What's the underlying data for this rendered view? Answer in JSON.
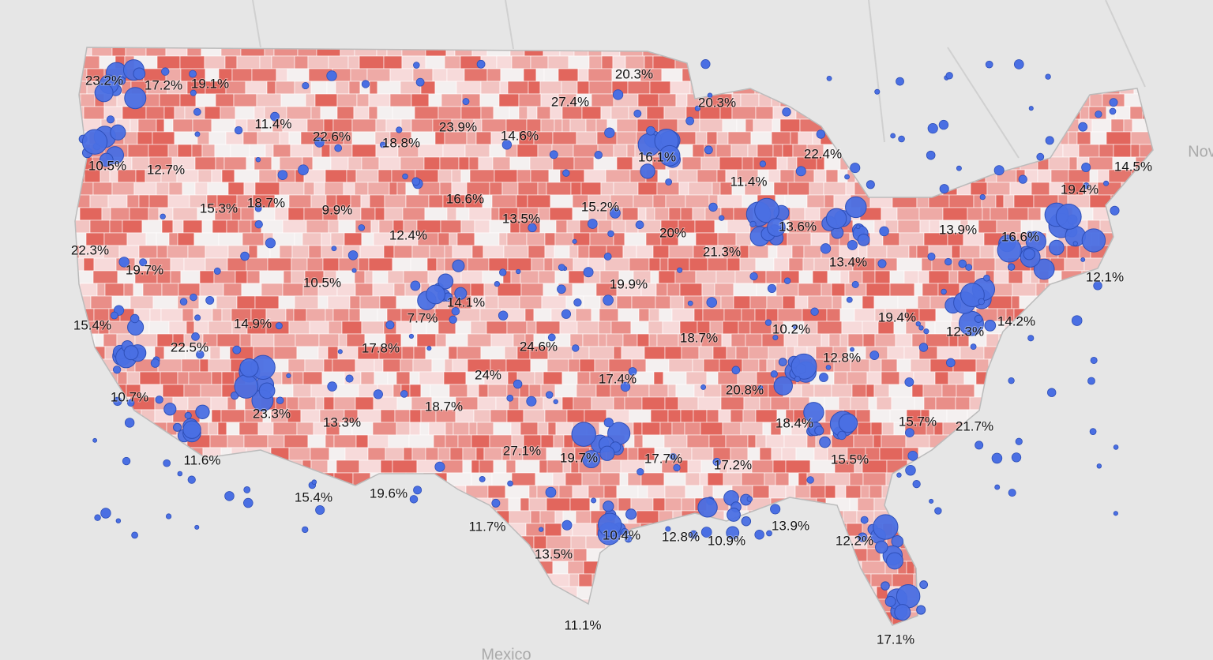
{
  "map": {
    "labels": [
      "23.2%",
      "17.2%",
      "19.1%",
      "20.3%",
      "27.4%",
      "20.3%",
      "11.4%",
      "22.6%",
      "18.8%",
      "23.9%",
      "14.6%",
      "16.1%",
      "22.4%",
      "10.5%",
      "12.7%",
      "14.5%",
      "11.4%",
      "19.4%",
      "15.3%",
      "18.7%",
      "9.9%",
      "16.6%",
      "15.2%",
      "13.5%",
      "13.6%",
      "13.9%",
      "16.6%",
      "12.4%",
      "20%",
      "22.3%",
      "21.3%",
      "13.4%",
      "19.7%",
      "10.5%",
      "12.1%",
      "19.9%",
      "14.1%",
      "7.7%",
      "19.4%",
      "15.4%",
      "14.9%",
      "14.2%",
      "10.2%",
      "12.3%",
      "18.7%",
      "22.5%",
      "17.8%",
      "24.6%",
      "12.8%",
      "24%",
      "17.4%",
      "20.8%",
      "10.7%",
      "23.3%",
      "13.3%",
      "18.7%",
      "18.4%",
      "15.7%",
      "21.7%",
      "27.1%",
      "19.7%",
      "17.7%",
      "17.2%",
      "15.5%",
      "11.6%",
      "15.4%",
      "19.6%",
      "11.7%",
      "13.9%",
      "10.4%",
      "12.8%",
      "10.9%",
      "12.2%",
      "13.5%",
      "11.1%",
      "17.1%"
    ],
    "places": [
      "Mexico",
      "Nov"
    ]
  }
}
